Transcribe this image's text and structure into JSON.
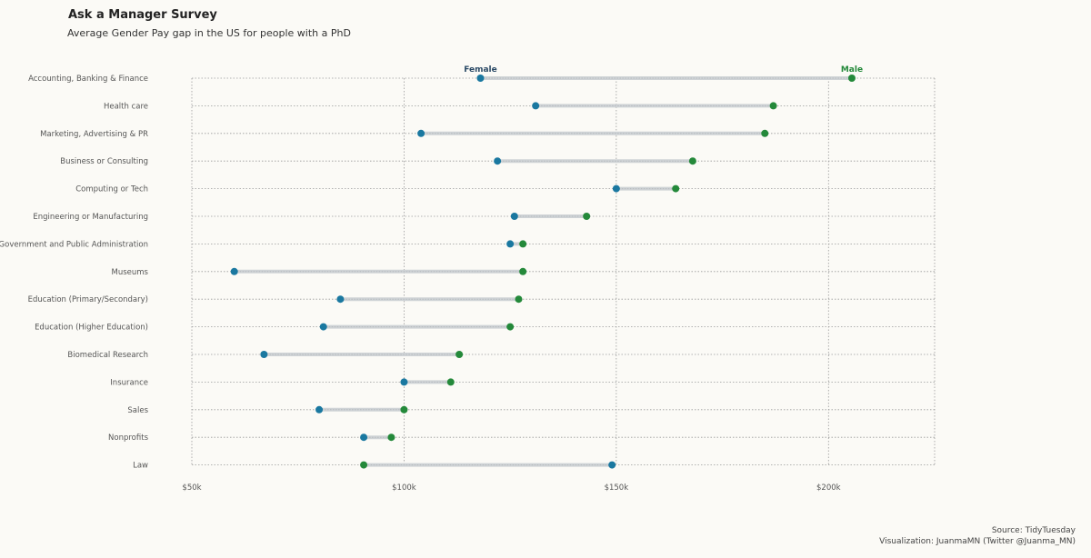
{
  "title": "Ask a Manager Survey",
  "subtitle": "Average Gender Pay gap in the US for people with a PhD",
  "caption": {
    "source": "Source: TidyTuesday",
    "visualization": "Visualization: JuanmaMN (Twitter @Juanma_MN)"
  },
  "colors": {
    "female": "#1a78a0",
    "male": "#24893a",
    "connector": "#cfd3d6",
    "grid": "#9a9a9a",
    "background": "#fbfaf6"
  },
  "chart_data": {
    "type": "dumbbell",
    "xlim": [
      50000,
      225000
    ],
    "x_ticks": [
      {
        "value": 50000,
        "label": "$50k"
      },
      {
        "value": 100000,
        "label": "$100k"
      },
      {
        "value": 150000,
        "label": "$150k"
      },
      {
        "value": 200000,
        "label": "$200k"
      }
    ],
    "series": [
      {
        "name": "Female",
        "key": "female"
      },
      {
        "name": "Male",
        "key": "male"
      }
    ],
    "rows": [
      {
        "category": "Accounting, Banking & Finance",
        "female": 118000,
        "male": 205500
      },
      {
        "category": "Health care",
        "female": 131000,
        "male": 187000
      },
      {
        "category": "Marketing, Advertising & PR",
        "female": 104000,
        "male": 185000
      },
      {
        "category": "Business or Consulting",
        "female": 122000,
        "male": 168000
      },
      {
        "category": "Computing or Tech",
        "female": 150000,
        "male": 164000
      },
      {
        "category": "Engineering or Manufacturing",
        "female": 126000,
        "male": 143000
      },
      {
        "category": "Government and Public Administration",
        "female": 125000,
        "male": 128000
      },
      {
        "category": "Museums",
        "female": 60000,
        "male": 128000
      },
      {
        "category": "Education (Primary/Secondary)",
        "female": 85000,
        "male": 127000
      },
      {
        "category": "Education (Higher Education)",
        "female": 81000,
        "male": 125000
      },
      {
        "category": "Biomedical Research",
        "female": 67000,
        "male": 113000
      },
      {
        "category": "Insurance",
        "female": 100000,
        "male": 111000
      },
      {
        "category": "Sales",
        "female": 80000,
        "male": 100000
      },
      {
        "category": "Nonprofits",
        "female": 90500,
        "male": 97000
      },
      {
        "category": "Law",
        "female": 149000,
        "male": 90500
      }
    ]
  }
}
